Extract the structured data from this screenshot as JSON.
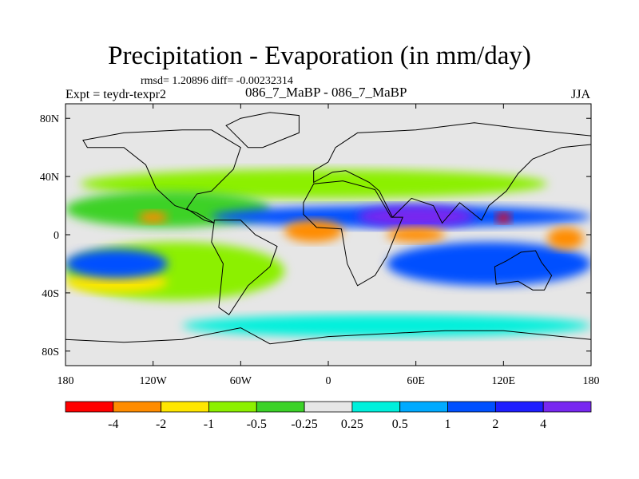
{
  "header": {
    "title": "Precipitation - Evaporation (in mm/day)",
    "stats": "rmsd= 1.20896 diff= -0.00232314",
    "experiment": "Expt = teydr-texpr2",
    "subtitle": "086_7_MaBP - 086_7_MaBP",
    "season": "JJA"
  },
  "chart_data": {
    "type": "heatmap",
    "title": "Precipitation - Evaporation (in mm/day)",
    "projection": "cylindrical equidistant",
    "xlim": [
      -180,
      180
    ],
    "ylim": [
      -90,
      90
    ],
    "x_ticks": [
      {
        "value": -180,
        "label": "180"
      },
      {
        "value": -120,
        "label": "120W"
      },
      {
        "value": -60,
        "label": "60W"
      },
      {
        "value": 0,
        "label": "0"
      },
      {
        "value": 60,
        "label": "60E"
      },
      {
        "value": 120,
        "label": "120E"
      },
      {
        "value": 180,
        "label": "180"
      }
    ],
    "y_ticks": [
      {
        "value": 80,
        "label": "80N"
      },
      {
        "value": 40,
        "label": "40N"
      },
      {
        "value": 0,
        "label": "0"
      },
      {
        "value": -40,
        "label": "40S"
      },
      {
        "value": -80,
        "label": "80S"
      }
    ],
    "colorbar": {
      "colors": [
        "#ff0000",
        "#ff8c00",
        "#ffe600",
        "#8cf000",
        "#3cd228",
        "#e6e6e6",
        "#00f0dc",
        "#00aaff",
        "#0050ff",
        "#1e1eff",
        "#7828f0"
      ],
      "boundaries": [
        "-4",
        "-2",
        "-1",
        "-0.5",
        "-0.25",
        "0.25",
        "0.5",
        "1",
        "2",
        "4"
      ]
    },
    "regions": [
      {
        "name": "background",
        "level": 5
      },
      {
        "name": "northern-midlatitude-band",
        "level": 3,
        "lon": [
          -170,
          150
        ],
        "lat": [
          25,
          45
        ]
      },
      {
        "name": "north-pacific-dry-zone",
        "level": 4,
        "lon": [
          -180,
          -40
        ],
        "lat": [
          5,
          30
        ]
      },
      {
        "name": "east-pacific-dry-cell",
        "level": 1,
        "lon": [
          -130,
          -110
        ],
        "lat": [
          8,
          16
        ]
      },
      {
        "name": "equatorial-wet-band",
        "level": 8,
        "lon": [
          -80,
          180
        ],
        "lat": [
          5,
          20
        ]
      },
      {
        "name": "indian-ocean-wet-core",
        "level": 10,
        "lon": [
          20,
          100
        ],
        "lat": [
          5,
          20
        ]
      },
      {
        "name": "west-pacific-dry-cell",
        "level": 0,
        "lon": [
          115,
          125
        ],
        "lat": [
          8,
          15
        ]
      },
      {
        "name": "south-pacific-dry-band",
        "level": 3,
        "lon": [
          -180,
          -30
        ],
        "lat": [
          -45,
          -5
        ]
      },
      {
        "name": "south-pacific-yellow-core",
        "level": 2,
        "lon": [
          -180,
          -110
        ],
        "lat": [
          -40,
          -25
        ]
      },
      {
        "name": "southern-wet-tongue",
        "level": 8,
        "lon": [
          -180,
          -110
        ],
        "lat": [
          -30,
          -10
        ]
      },
      {
        "name": "atlantic-dry-cell",
        "level": 1,
        "lon": [
          -30,
          10
        ],
        "lat": [
          -5,
          10
        ]
      },
      {
        "name": "indian-ocean-wet-band",
        "level": 8,
        "lon": [
          40,
          180
        ],
        "lat": [
          -35,
          -5
        ]
      },
      {
        "name": "south-indian-dry-cell",
        "level": 1,
        "lon": [
          40,
          80
        ],
        "lat": [
          -5,
          5
        ]
      },
      {
        "name": "southern-ocean-band",
        "level": 6,
        "lon": [
          -100,
          180
        ],
        "lat": [
          -70,
          -55
        ]
      },
      {
        "name": "east-pacific-dry-cell-2",
        "level": 1,
        "lon": [
          150,
          175
        ],
        "lat": [
          -10,
          5
        ]
      }
    ]
  }
}
